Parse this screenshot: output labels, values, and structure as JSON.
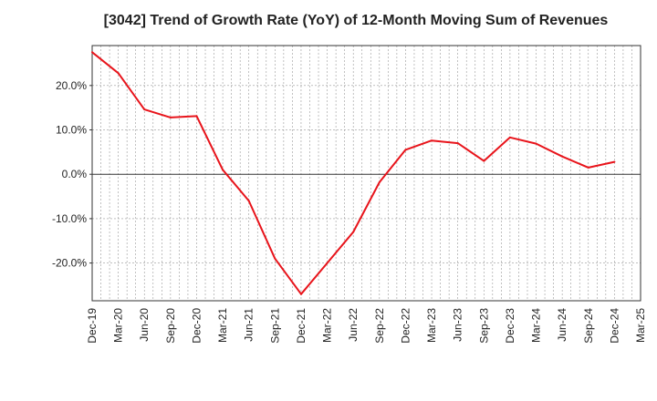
{
  "chart_data": {
    "type": "line",
    "title": "[3042]  Trend of Growth Rate (YoY) of 12-Month Moving Sum of Revenues",
    "x_tick_labels": [
      "Dec-19",
      "Mar-20",
      "Jun-20",
      "Sep-20",
      "Dec-20",
      "Mar-21",
      "Jun-21",
      "Sep-21",
      "Dec-21",
      "Mar-22",
      "Jun-22",
      "Sep-22",
      "Dec-22",
      "Mar-23",
      "Jun-23",
      "Sep-23",
      "Dec-23",
      "Mar-24",
      "Jun-24",
      "Sep-24",
      "Dec-24",
      "Mar-25"
    ],
    "y_ticks": [
      20,
      10,
      0,
      -10,
      -20
    ],
    "y_tick_labels": [
      "20.0%",
      "10.0%",
      "0.0%",
      "-10.0%",
      "-20.0%"
    ],
    "ylim": [
      -28.5,
      29
    ],
    "series": [
      {
        "color": "#e8141b",
        "x": [
          "Dec-19",
          "Mar-20",
          "Jun-20",
          "Sep-20",
          "Dec-20",
          "Mar-21",
          "Jun-21",
          "Sep-21",
          "Dec-21",
          "Mar-22",
          "Jun-22",
          "Sep-22",
          "Dec-22",
          "Mar-23",
          "Jun-23",
          "Sep-23",
          "Dec-23",
          "Mar-24",
          "Jun-24",
          "Sep-24",
          "Dec-24"
        ],
        "values": [
          27.5,
          22.8,
          14.6,
          12.8,
          13.1,
          1.0,
          -6.0,
          -19.0,
          -27.0,
          -20.0,
          -13.0,
          -1.8,
          5.5,
          7.6,
          7.0,
          3.0,
          8.3,
          6.9,
          4.0,
          1.5,
          2.8
        ]
      }
    ],
    "grid": true,
    "zero_line": true
  }
}
